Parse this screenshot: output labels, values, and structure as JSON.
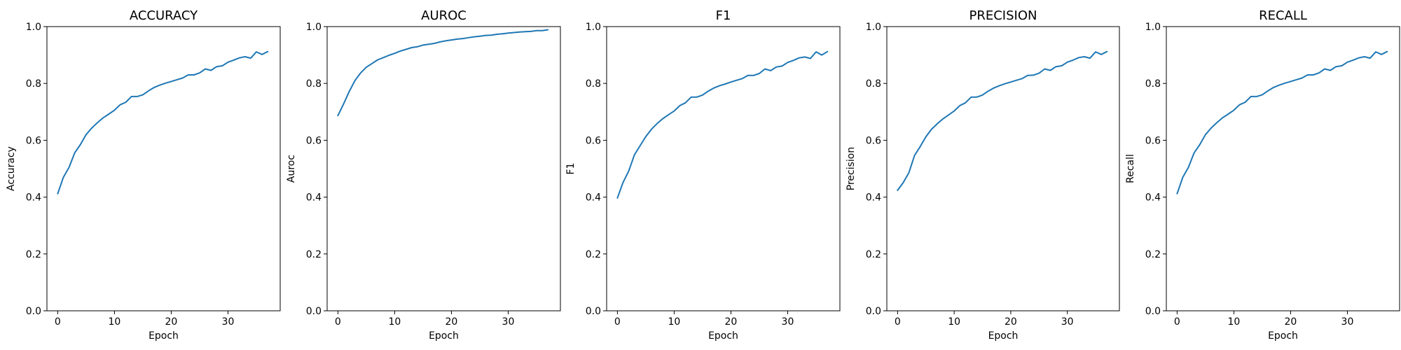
{
  "chart_data": [
    {
      "type": "line",
      "title": "ACCURACY",
      "xlabel": "Epoch",
      "ylabel": "Accuracy",
      "xlim": [
        -1.9,
        39.2
      ],
      "ylim": [
        0.0,
        1.0
      ],
      "xticks": [
        0,
        10,
        20,
        30
      ],
      "yticks": [
        0.0,
        0.2,
        0.4,
        0.6,
        0.8,
        1.0
      ],
      "grid": false,
      "series": [
        {
          "color": "#1f77b4",
          "x": [
            0,
            1,
            2,
            3,
            4,
            5,
            6,
            7,
            8,
            9,
            10,
            11,
            12,
            13,
            14,
            15,
            16,
            17,
            18,
            19,
            20,
            21,
            22,
            23,
            24,
            25,
            26,
            27,
            28,
            29,
            30,
            31,
            32,
            33,
            34,
            35,
            36,
            37
          ],
          "y": [
            0.412,
            0.47,
            0.505,
            0.556,
            0.585,
            0.62,
            0.643,
            0.662,
            0.679,
            0.692,
            0.706,
            0.725,
            0.734,
            0.754,
            0.754,
            0.76,
            0.774,
            0.786,
            0.794,
            0.801,
            0.807,
            0.813,
            0.819,
            0.83,
            0.83,
            0.837,
            0.851,
            0.846,
            0.859,
            0.862,
            0.875,
            0.882,
            0.89,
            0.894,
            0.889,
            0.911,
            0.902,
            0.912
          ]
        }
      ]
    },
    {
      "type": "line",
      "title": "AUROC",
      "xlabel": "Epoch",
      "ylabel": "Auroc",
      "xlim": [
        -1.9,
        39.2
      ],
      "ylim": [
        0.0,
        1.0
      ],
      "xticks": [
        0,
        10,
        20,
        30
      ],
      "yticks": [
        0.0,
        0.2,
        0.4,
        0.6,
        0.8,
        1.0
      ],
      "grid": false,
      "series": [
        {
          "color": "#1f77b4",
          "x": [
            0,
            1,
            2,
            3,
            4,
            5,
            6,
            7,
            8,
            9,
            10,
            11,
            12,
            13,
            14,
            15,
            16,
            17,
            18,
            19,
            20,
            21,
            22,
            23,
            24,
            25,
            26,
            27,
            28,
            29,
            30,
            31,
            32,
            33,
            34,
            35,
            36,
            37
          ],
          "y": [
            0.687,
            0.728,
            0.772,
            0.81,
            0.837,
            0.857,
            0.87,
            0.883,
            0.891,
            0.899,
            0.906,
            0.914,
            0.92,
            0.926,
            0.929,
            0.935,
            0.938,
            0.941,
            0.946,
            0.95,
            0.953,
            0.956,
            0.958,
            0.961,
            0.964,
            0.966,
            0.969,
            0.97,
            0.973,
            0.975,
            0.977,
            0.979,
            0.981,
            0.982,
            0.983,
            0.986,
            0.986,
            0.989
          ]
        }
      ]
    },
    {
      "type": "line",
      "title": "F1",
      "xlabel": "Epoch",
      "ylabel": "F1",
      "xlim": [
        -1.9,
        39.2
      ],
      "ylim": [
        0.0,
        1.0
      ],
      "xticks": [
        0,
        10,
        20,
        30
      ],
      "yticks": [
        0.0,
        0.2,
        0.4,
        0.6,
        0.8,
        1.0
      ],
      "grid": false,
      "series": [
        {
          "color": "#1f77b4",
          "x": [
            0,
            1,
            2,
            3,
            4,
            5,
            6,
            7,
            8,
            9,
            10,
            11,
            12,
            13,
            14,
            15,
            16,
            17,
            18,
            19,
            20,
            21,
            22,
            23,
            24,
            25,
            26,
            27,
            28,
            29,
            30,
            31,
            32,
            33,
            34,
            35,
            36,
            37
          ],
          "y": [
            0.397,
            0.452,
            0.492,
            0.549,
            0.581,
            0.613,
            0.639,
            0.659,
            0.676,
            0.69,
            0.703,
            0.722,
            0.732,
            0.752,
            0.752,
            0.759,
            0.773,
            0.784,
            0.792,
            0.798,
            0.805,
            0.811,
            0.817,
            0.828,
            0.828,
            0.835,
            0.851,
            0.845,
            0.858,
            0.861,
            0.874,
            0.881,
            0.89,
            0.893,
            0.888,
            0.911,
            0.9,
            0.912
          ]
        }
      ]
    },
    {
      "type": "line",
      "title": "PRECISION",
      "xlabel": "Epoch",
      "ylabel": "Precision",
      "xlim": [
        -1.9,
        39.2
      ],
      "ylim": [
        0.0,
        1.0
      ],
      "xticks": [
        0,
        10,
        20,
        30
      ],
      "yticks": [
        0.0,
        0.2,
        0.4,
        0.6,
        0.8,
        1.0
      ],
      "grid": false,
      "series": [
        {
          "color": "#1f77b4",
          "x": [
            0,
            1,
            2,
            3,
            4,
            5,
            6,
            7,
            8,
            9,
            10,
            11,
            12,
            13,
            14,
            15,
            16,
            17,
            18,
            19,
            20,
            21,
            22,
            23,
            24,
            25,
            26,
            27,
            28,
            29,
            30,
            31,
            32,
            33,
            34,
            35,
            36,
            37
          ],
          "y": [
            0.424,
            0.451,
            0.486,
            0.547,
            0.578,
            0.612,
            0.639,
            0.658,
            0.675,
            0.689,
            0.703,
            0.722,
            0.732,
            0.752,
            0.752,
            0.759,
            0.773,
            0.784,
            0.792,
            0.799,
            0.805,
            0.811,
            0.817,
            0.828,
            0.829,
            0.836,
            0.851,
            0.846,
            0.859,
            0.862,
            0.875,
            0.882,
            0.891,
            0.894,
            0.889,
            0.911,
            0.902,
            0.912
          ]
        }
      ]
    },
    {
      "type": "line",
      "title": "RECALL",
      "xlabel": "Epoch",
      "ylabel": "Recall",
      "xlim": [
        -1.9,
        39.2
      ],
      "ylim": [
        0.0,
        1.0
      ],
      "xticks": [
        0,
        10,
        20,
        30
      ],
      "yticks": [
        0.0,
        0.2,
        0.4,
        0.6,
        0.8,
        1.0
      ],
      "grid": false,
      "series": [
        {
          "color": "#1f77b4",
          "x": [
            0,
            1,
            2,
            3,
            4,
            5,
            6,
            7,
            8,
            9,
            10,
            11,
            12,
            13,
            14,
            15,
            16,
            17,
            18,
            19,
            20,
            21,
            22,
            23,
            24,
            25,
            26,
            27,
            28,
            29,
            30,
            31,
            32,
            33,
            34,
            35,
            36,
            37
          ],
          "y": [
            0.412,
            0.47,
            0.505,
            0.556,
            0.585,
            0.62,
            0.643,
            0.662,
            0.679,
            0.692,
            0.706,
            0.725,
            0.734,
            0.754,
            0.754,
            0.76,
            0.774,
            0.786,
            0.794,
            0.801,
            0.807,
            0.813,
            0.819,
            0.83,
            0.83,
            0.837,
            0.851,
            0.846,
            0.859,
            0.862,
            0.875,
            0.882,
            0.89,
            0.894,
            0.889,
            0.911,
            0.902,
            0.912
          ]
        }
      ]
    }
  ]
}
